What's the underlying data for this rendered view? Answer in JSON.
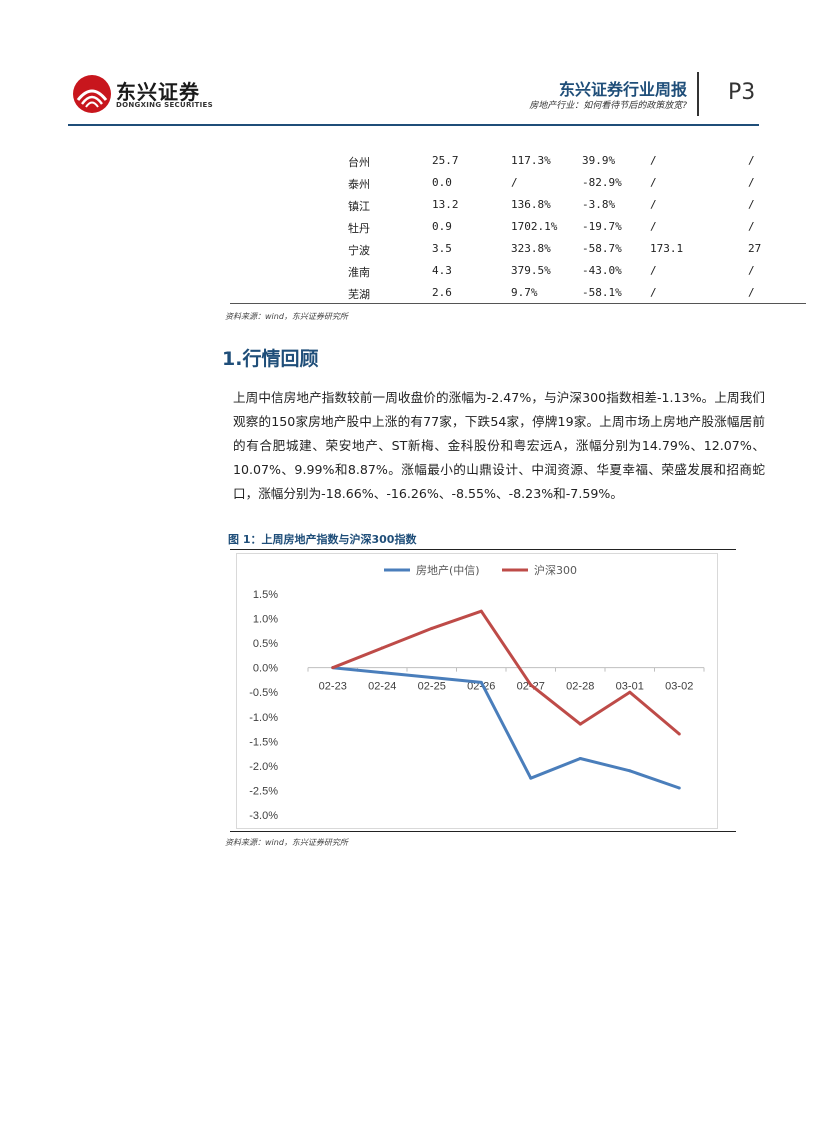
{
  "header": {
    "brand_cn": "东兴证券",
    "brand_en": "DONGXING SECURITIES",
    "report_title": "东兴证券行业周报",
    "report_subtitle": "房地产行业：如何看待节后的政策放宽?",
    "page_number": "P3",
    "colors": {
      "accent": "#1f4e79",
      "logo_red": "#c8161d"
    }
  },
  "table": {
    "rows": [
      [
        "台州",
        "25.7",
        "117.3%",
        "39.9%",
        "/",
        "/"
      ],
      [
        "泰州",
        "0.0",
        "/",
        "-82.9%",
        "/",
        "/"
      ],
      [
        "镇江",
        "13.2",
        "136.8%",
        "-3.8%",
        "/",
        "/"
      ],
      [
        "牡丹",
        "0.9",
        "1702.1%",
        "-19.7%",
        "/",
        "/"
      ],
      [
        "宁波",
        "3.5",
        "323.8%",
        "-58.7%",
        "173.1",
        "27"
      ],
      [
        "淮南",
        "4.3",
        "379.5%",
        "-43.0%",
        "/",
        "/"
      ],
      [
        "芜湖",
        "2.6",
        "9.7%",
        "-58.1%",
        "/",
        "/"
      ]
    ],
    "source": "资料来源：wind，东兴证券研究所"
  },
  "section": {
    "title": "1.行情回顾",
    "paragraph": "上周中信房地产指数较前一周收盘价的涨幅为-2.47%，与沪深300指数相差-1.13%。上周我们观察的150家房地产股中上涨的有77家，下跌54家，停牌19家。上周市场上房地产股涨幅居前的有合肥城建、荣安地产、ST新梅、金科股份和粤宏远A，涨幅分别为14.79%、12.07%、10.07%、9.99%和8.87%。涨幅最小的山鼎设计、中润资源、华夏幸福、荣盛发展和招商蛇口，涨幅分别为-18.66%、-16.26%、-8.55%、-8.23%和-7.59%。"
  },
  "figure": {
    "caption": "图 1：上周房地产指数与沪深300指数",
    "source": "资料来源：wind，东兴证券研究所"
  },
  "chart_data": {
    "type": "line",
    "categories": [
      "02-23",
      "02-24",
      "02-25",
      "02-26",
      "02-27",
      "02-28",
      "03-01",
      "03-02"
    ],
    "series": [
      {
        "name": "房地产(中信)",
        "color": "#4a7ebb",
        "values": [
          0.0,
          -0.1,
          -0.2,
          -0.3,
          -2.25,
          -1.85,
          -2.1,
          -2.45
        ]
      },
      {
        "name": "沪深300",
        "color": "#be4b48",
        "values": [
          0.0,
          0.4,
          0.8,
          1.15,
          -0.35,
          -1.15,
          -0.5,
          -1.35
        ]
      }
    ],
    "ylim": [
      -3.0,
      1.5
    ],
    "yticks": [
      "1.5%",
      "1.0%",
      "0.5%",
      "0.0%",
      "-0.5%",
      "-1.0%",
      "-1.5%",
      "-2.0%",
      "-2.5%",
      "-3.0%"
    ],
    "ytick_values": [
      1.5,
      1.0,
      0.5,
      0.0,
      -0.5,
      -1.0,
      -1.5,
      -2.0,
      -2.5,
      -3.0
    ],
    "legend": "top-center",
    "grid": false
  }
}
